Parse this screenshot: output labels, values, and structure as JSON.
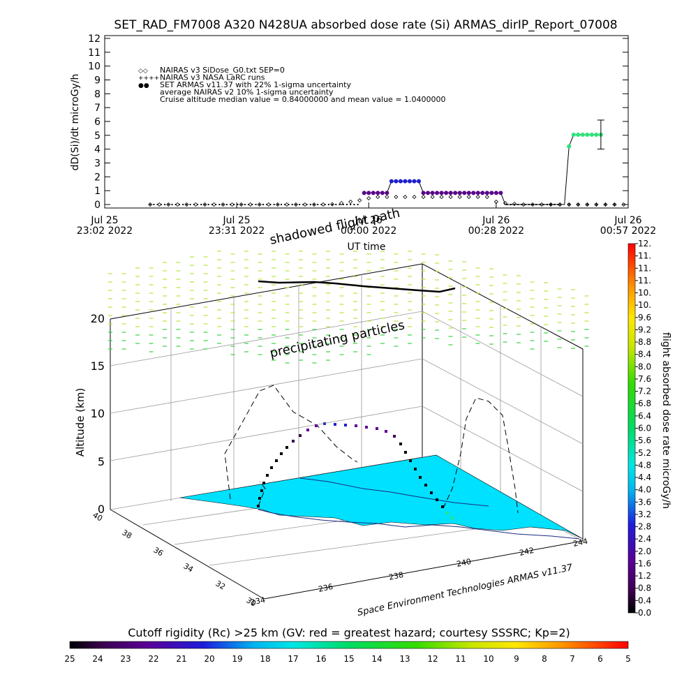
{
  "chart_data": [
    {
      "type": "scatter",
      "title": "SET_RAD_FM7008  A320 N428UA absorbed dose rate (Si) ARMAS_dirIP_Report_07008",
      "ylabel": "dD(Si)/dt microGy/h",
      "xlabel": "UT time",
      "ylim": [
        0,
        12
      ],
      "yticks": [
        "0",
        "1",
        "2",
        "3",
        "4",
        "5",
        "6",
        "7",
        "8",
        "9",
        "10",
        "11",
        "12"
      ],
      "xticks": [
        {
          "day": "Jul 25",
          "time": "23:02  2022",
          "t": 0
        },
        {
          "day": "Jul 25",
          "time": "23:31  2022",
          "t": 29
        },
        {
          "day": "Jul 26",
          "time": "00:00  2022",
          "t": 58
        },
        {
          "day": "Jul 26",
          "time": "00:28  2022",
          "t": 86
        },
        {
          "day": "Jul 26",
          "time": "00:57  2022",
          "t": 115
        }
      ],
      "xlim_minutes_after_2302": [
        0,
        115
      ],
      "legend": [
        {
          "symbol": "◇",
          "text": "NAIRAS v3 SiDose_G0.txt SEP=0"
        },
        {
          "symbol": "++",
          "text": "NAIRAS v3 NASA LaRC runs"
        },
        {
          "symbol": "●",
          "text": "SET ARMAS v11.37 with 22% 1-sigma uncertainty"
        },
        {
          "symbol": "",
          "text": "average NAIRAS v2 10% 1-sigma uncertainty"
        },
        {
          "symbol": "",
          "text": "Cruise altitude median value = 0.84000000 and mean value = 1.0400000"
        }
      ],
      "series": [
        {
          "name": "NAIRAS v3 SiDose_G0.txt SEP=0",
          "marker": "diamond",
          "x": [
            10,
            12,
            14,
            16,
            18,
            20,
            22,
            24,
            26,
            28,
            30,
            32,
            34,
            36,
            38,
            40,
            42,
            44,
            46,
            48,
            50,
            52,
            54,
            56,
            58,
            60,
            62,
            64,
            66,
            68,
            70,
            72,
            74,
            76,
            78,
            80,
            82,
            84,
            86,
            88,
            90,
            92,
            94,
            96,
            98,
            100,
            102,
            104,
            106,
            108,
            110,
            112,
            114
          ],
          "y": [
            0,
            0,
            0,
            0,
            0,
            0,
            0,
            0,
            0,
            0,
            0,
            0,
            0,
            0,
            0,
            0,
            0,
            0,
            0,
            0,
            0.02,
            0.1,
            0.2,
            0.3,
            0.45,
            0.55,
            0.55,
            0.55,
            0.55,
            0.55,
            0.55,
            0.55,
            0.55,
            0.55,
            0.55,
            0.55,
            0.55,
            0.55,
            0.2,
            0.1,
            0.05,
            0,
            0,
            0,
            0,
            0,
            0,
            0,
            0,
            0,
            0,
            0,
            0
          ]
        },
        {
          "name": "NAIRAS v3 NASA LaRC runs",
          "marker": "plus",
          "x": [
            98,
            100,
            102,
            104,
            106,
            108,
            110,
            112
          ],
          "y": [
            0,
            0,
            0,
            0,
            0,
            0,
            0,
            0
          ]
        },
        {
          "name": "SET ARMAS v11.37 with 22% 1-sigma uncertainty",
          "marker": "dot",
          "x": [
            57,
            58,
            59,
            60,
            61,
            62,
            63,
            64,
            65,
            66,
            67,
            68,
            69,
            70,
            71,
            72,
            73,
            74,
            75,
            76,
            77,
            78,
            79,
            80,
            81,
            82,
            83,
            84,
            85,
            86,
            87,
            102,
            103,
            104,
            105,
            106,
            107,
            108,
            109
          ],
          "y": [
            0.84,
            0.84,
            0.84,
            0.84,
            0.84,
            0.84,
            1.68,
            1.68,
            1.68,
            1.68,
            1.68,
            1.68,
            1.68,
            0.84,
            0.84,
            0.84,
            0.84,
            0.84,
            0.84,
            0.84,
            0.84,
            0.84,
            0.84,
            0.84,
            0.84,
            0.84,
            0.84,
            0.84,
            0.84,
            0.84,
            0.84,
            4.2,
            5.04,
            5.04,
            5.04,
            5.04,
            5.04,
            5.04,
            5.04
          ]
        }
      ],
      "error_bar": {
        "x": 109,
        "y": 5.04,
        "low": 4.0,
        "high": 6.1
      }
    },
    {
      "type": "scatter",
      "subtype": "3d-trajectory",
      "zlabel": "Altitude (km)",
      "zticks": [
        "0",
        "5",
        "10",
        "15",
        "20"
      ],
      "lat_ticks": [
        "30",
        "32",
        "34",
        "36",
        "38",
        "40"
      ],
      "lon_ticks": [
        "234",
        "236",
        "238",
        "240",
        "242",
        "244"
      ],
      "annotations": [
        "shadowed flight path",
        "precipitating particles"
      ],
      "credit": "Space Environment Technologies ARMAS v11.37",
      "trajectory_altitude_km": [
        0,
        1,
        3,
        5,
        7,
        9,
        10,
        11,
        11,
        11,
        11,
        11,
        10.5,
        9,
        7,
        5,
        3,
        1,
        0
      ]
    },
    {
      "type": "heatmap",
      "role": "colorbar",
      "label": "flight absorbed dose rate microGy/h",
      "ticks": [
        "0.0",
        "0.4",
        "0.8",
        "1.2",
        "1.6",
        "2.0",
        "2.4",
        "2.8",
        "3.2",
        "3.6",
        "4.0",
        "4.4",
        "4.8",
        "5.2",
        "5.6",
        "6.0",
        "6.4",
        "6.8",
        "7.2",
        "7.6",
        "8.0",
        "8.4",
        "8.8",
        "9.2",
        "9.6",
        "10.",
        "10.",
        "11.",
        "11.",
        "11.",
        "12."
      ]
    },
    {
      "type": "heatmap",
      "role": "colorbar",
      "label": "Cutoff rigidity (Rc) >25 km (GV: red = greatest hazard; courtesy SSSRC; Kp=2)",
      "ticks": [
        "25",
        "24",
        "23",
        "22",
        "21",
        "20",
        "19",
        "18",
        "17",
        "16",
        "15",
        "14",
        "13",
        "12",
        "11",
        "10",
        "9",
        "8",
        "7",
        "6",
        "5"
      ]
    }
  ],
  "colors": {
    "nairas_series": "#000000",
    "armas_low": "#5a008c",
    "armas_mid": "#1e1ed2",
    "armas_high": "#28e678",
    "ground_map": "#00e0ff",
    "precip_particles": "#b4e63c"
  }
}
